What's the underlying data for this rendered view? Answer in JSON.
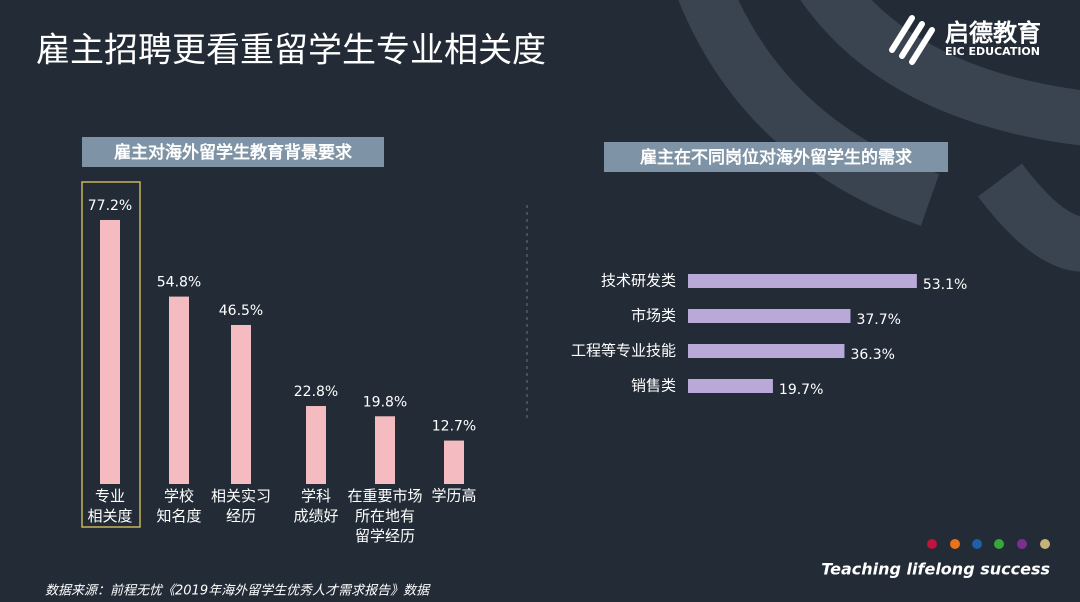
{
  "title": "雇主招聘更看重留学生专业相关度",
  "logo": {
    "name": "启德教育",
    "sub": "EIC EDUCATION"
  },
  "chart_data": [
    {
      "type": "bar",
      "title": "雇主对海外留学生教育背景要求",
      "categories": [
        "专业\n相关度",
        "学校\n知名度",
        "相关实习\n经历",
        "学科\n成绩好",
        "在重要市场\n所在地有\n留学经历",
        "学历高"
      ],
      "values": [
        77.2,
        54.8,
        46.5,
        22.8,
        19.8,
        12.7
      ],
      "value_labels": [
        "77.2%",
        "54.8%",
        "46.5%",
        "22.8%",
        "19.8%",
        "12.7%"
      ],
      "color": "#f4bcc0",
      "highlight": 0
    },
    {
      "type": "barh",
      "title": "雇主在不同岗位对海外留学生的需求",
      "categories": [
        "技术研发类",
        "市场类",
        "工程等专业技能",
        "销售类"
      ],
      "values": [
        53.1,
        37.7,
        36.3,
        19.7
      ],
      "value_labels": [
        "53.1%",
        "37.7%",
        "36.3%",
        "19.7%"
      ],
      "color": "#b8a9d9"
    }
  ],
  "source": "数据来源：前程无忧《2019年海外留学生优秀人才需求报告》数据",
  "tagline": "Teaching lifelong success"
}
